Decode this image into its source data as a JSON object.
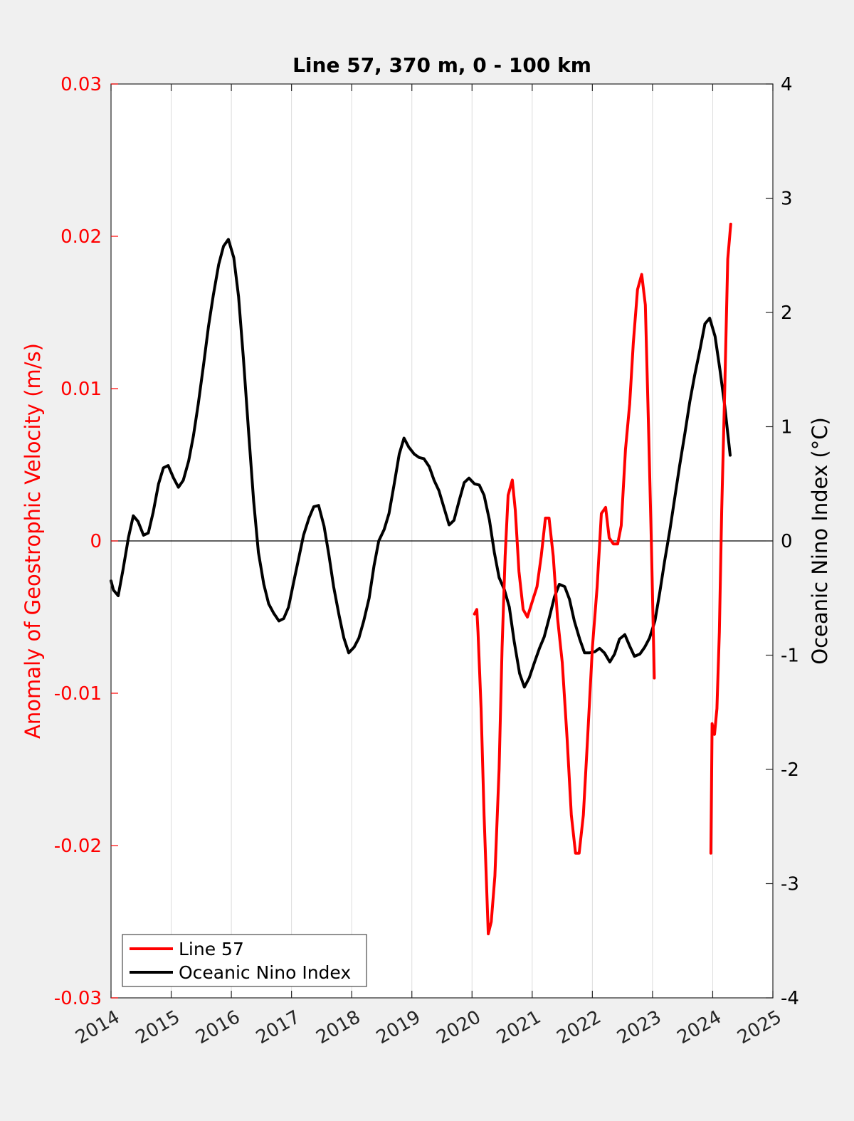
{
  "chart_data": {
    "type": "line",
    "title": "Line 57, 370 m, 0 - 100 km",
    "xlabel": "",
    "ylabel_left": "Anomaly of Geostrophic Velocity (m/s)",
    "ylabel_right": "Oceanic Nino Index (°C)",
    "xlim": [
      2014,
      2025
    ],
    "ylim_left": [
      -0.03,
      0.03
    ],
    "ylim_right": [
      -4,
      4
    ],
    "x_ticks": [
      "2014",
      "2015",
      "2016",
      "2017",
      "2018",
      "2019",
      "2020",
      "2021",
      "2022",
      "2023",
      "2024",
      "2025"
    ],
    "y_left_ticks": [
      "-0.03",
      "-0.02",
      "-0.01",
      "0",
      "0.01",
      "0.02",
      "0.03"
    ],
    "y_right_ticks": [
      "-4",
      "-3",
      "-2",
      "-1",
      "0",
      "1",
      "2",
      "3",
      "4"
    ],
    "grid": "vertical",
    "zero_line": true,
    "legend_position": "bottom-left",
    "colors": {
      "line57": "#ff0000",
      "oni": "#000000",
      "left_axis": "#ff0000",
      "right_axis": "#000000",
      "background": "#f0f0f0",
      "plot_bg": "#ffffff"
    },
    "series": [
      {
        "name": "Line 57",
        "axis": "left",
        "color": "#ff0000",
        "segments": [
          [
            [
              2020.04,
              -0.0048
            ],
            [
              2020.08,
              -0.0045
            ],
            [
              2020.1,
              -0.006
            ],
            [
              2020.15,
              -0.011
            ],
            [
              2020.2,
              -0.018
            ],
            [
              2020.27,
              -0.0258
            ],
            [
              2020.32,
              -0.025
            ],
            [
              2020.38,
              -0.022
            ],
            [
              2020.45,
              -0.015
            ],
            [
              2020.5,
              -0.007
            ],
            [
              2020.55,
              -0.001
            ],
            [
              2020.6,
              0.003
            ],
            [
              2020.67,
              0.004
            ],
            [
              2020.72,
              0.002
            ],
            [
              2020.78,
              -0.002
            ],
            [
              2020.85,
              -0.0045
            ],
            [
              2020.92,
              -0.005
            ],
            [
              2021.0,
              -0.004
            ],
            [
              2021.08,
              -0.003
            ],
            [
              2021.15,
              -0.001
            ],
            [
              2021.22,
              0.0015
            ],
            [
              2021.28,
              0.0015
            ],
            [
              2021.35,
              -0.001
            ],
            [
              2021.42,
              -0.005
            ],
            [
              2021.5,
              -0.008
            ],
            [
              2021.58,
              -0.013
            ],
            [
              2021.65,
              -0.018
            ],
            [
              2021.72,
              -0.0205
            ],
            [
              2021.78,
              -0.0205
            ],
            [
              2021.85,
              -0.018
            ],
            [
              2021.92,
              -0.013
            ],
            [
              2022.0,
              -0.007
            ],
            [
              2022.08,
              -0.003
            ],
            [
              2022.15,
              0.0018
            ],
            [
              2022.22,
              0.0022
            ],
            [
              2022.28,
              0.0002
            ],
            [
              2022.35,
              -0.0002
            ],
            [
              2022.42,
              -0.0002
            ],
            [
              2022.48,
              0.001
            ],
            [
              2022.55,
              0.006
            ],
            [
              2022.62,
              0.009
            ],
            [
              2022.68,
              0.013
            ],
            [
              2022.75,
              0.0165
            ],
            [
              2022.82,
              0.0175
            ],
            [
              2022.88,
              0.0155
            ],
            [
              2022.93,
              0.008
            ],
            [
              2022.98,
              0.0
            ],
            [
              2023.03,
              -0.009
            ]
          ],
          [
            [
              2023.97,
              -0.0205
            ],
            [
              2023.99,
              -0.012
            ],
            [
              2024.03,
              -0.0127
            ],
            [
              2024.07,
              -0.011
            ],
            [
              2024.11,
              -0.006
            ],
            [
              2024.15,
              0.002
            ],
            [
              2024.2,
              0.01
            ],
            [
              2024.25,
              0.0185
            ],
            [
              2024.3,
              0.0208
            ]
          ]
        ]
      },
      {
        "name": "Oceanic Nino Index",
        "axis": "right",
        "color": "#000000",
        "segments": [
          [
            [
              2014.0,
              -0.35
            ],
            [
              2014.04,
              -0.43
            ],
            [
              2014.12,
              -0.48
            ],
            [
              2014.2,
              -0.25
            ],
            [
              2014.29,
              0.03
            ],
            [
              2014.37,
              0.22
            ],
            [
              2014.45,
              0.17
            ],
            [
              2014.54,
              0.05
            ],
            [
              2014.62,
              0.07
            ],
            [
              2014.7,
              0.25
            ],
            [
              2014.79,
              0.5
            ],
            [
              2014.87,
              0.64
            ],
            [
              2014.95,
              0.66
            ],
            [
              2015.04,
              0.55
            ],
            [
              2015.12,
              0.47
            ],
            [
              2015.2,
              0.53
            ],
            [
              2015.29,
              0.7
            ],
            [
              2015.37,
              0.92
            ],
            [
              2015.45,
              1.2
            ],
            [
              2015.54,
              1.55
            ],
            [
              2015.62,
              1.88
            ],
            [
              2015.7,
              2.15
            ],
            [
              2015.79,
              2.42
            ],
            [
              2015.87,
              2.58
            ],
            [
              2015.95,
              2.64
            ],
            [
              2016.04,
              2.48
            ],
            [
              2016.12,
              2.14
            ],
            [
              2016.2,
              1.6
            ],
            [
              2016.29,
              0.93
            ],
            [
              2016.37,
              0.35
            ],
            [
              2016.45,
              -0.1
            ],
            [
              2016.54,
              -0.38
            ],
            [
              2016.62,
              -0.55
            ],
            [
              2016.7,
              -0.63
            ],
            [
              2016.79,
              -0.7
            ],
            [
              2016.87,
              -0.68
            ],
            [
              2016.95,
              -0.58
            ],
            [
              2017.04,
              -0.35
            ],
            [
              2017.12,
              -0.15
            ],
            [
              2017.2,
              0.05
            ],
            [
              2017.29,
              0.2
            ],
            [
              2017.37,
              0.3
            ],
            [
              2017.45,
              0.31
            ],
            [
              2017.54,
              0.13
            ],
            [
              2017.62,
              -0.12
            ],
            [
              2017.7,
              -0.4
            ],
            [
              2017.79,
              -0.65
            ],
            [
              2017.87,
              -0.85
            ],
            [
              2017.95,
              -0.98
            ],
            [
              2018.04,
              -0.93
            ],
            [
              2018.12,
              -0.85
            ],
            [
              2018.2,
              -0.7
            ],
            [
              2018.29,
              -0.5
            ],
            [
              2018.37,
              -0.22
            ],
            [
              2018.45,
              0.0
            ],
            [
              2018.54,
              0.1
            ],
            [
              2018.62,
              0.24
            ],
            [
              2018.7,
              0.48
            ],
            [
              2018.79,
              0.76
            ],
            [
              2018.87,
              0.9
            ],
            [
              2018.95,
              0.82
            ],
            [
              2019.04,
              0.76
            ],
            [
              2019.12,
              0.73
            ],
            [
              2019.2,
              0.72
            ],
            [
              2019.29,
              0.65
            ],
            [
              2019.37,
              0.53
            ],
            [
              2019.45,
              0.44
            ],
            [
              2019.54,
              0.28
            ],
            [
              2019.62,
              0.14
            ],
            [
              2019.7,
              0.18
            ],
            [
              2019.79,
              0.36
            ],
            [
              2019.87,
              0.51
            ],
            [
              2019.95,
              0.55
            ],
            [
              2020.04,
              0.5
            ],
            [
              2020.12,
              0.49
            ],
            [
              2020.2,
              0.4
            ],
            [
              2020.29,
              0.18
            ],
            [
              2020.37,
              -0.1
            ],
            [
              2020.45,
              -0.32
            ],
            [
              2020.54,
              -0.43
            ],
            [
              2020.62,
              -0.58
            ],
            [
              2020.7,
              -0.88
            ],
            [
              2020.79,
              -1.16
            ],
            [
              2020.87,
              -1.28
            ],
            [
              2020.95,
              -1.2
            ],
            [
              2021.04,
              -1.06
            ],
            [
              2021.12,
              -0.94
            ],
            [
              2021.2,
              -0.84
            ],
            [
              2021.29,
              -0.66
            ],
            [
              2021.37,
              -0.49
            ],
            [
              2021.45,
              -0.38
            ],
            [
              2021.54,
              -0.4
            ],
            [
              2021.62,
              -0.51
            ],
            [
              2021.7,
              -0.7
            ],
            [
              2021.79,
              -0.86
            ],
            [
              2021.87,
              -0.98
            ],
            [
              2021.95,
              -0.98
            ],
            [
              2022.04,
              -0.97
            ],
            [
              2022.12,
              -0.94
            ],
            [
              2022.2,
              -0.98
            ],
            [
              2022.29,
              -1.06
            ],
            [
              2022.37,
              -0.99
            ],
            [
              2022.45,
              -0.86
            ],
            [
              2022.54,
              -0.82
            ],
            [
              2022.62,
              -0.92
            ],
            [
              2022.7,
              -1.01
            ],
            [
              2022.79,
              -0.99
            ],
            [
              2022.87,
              -0.93
            ],
            [
              2022.95,
              -0.85
            ],
            [
              2023.04,
              -0.7
            ],
            [
              2023.12,
              -0.45
            ],
            [
              2023.2,
              -0.18
            ],
            [
              2023.29,
              0.1
            ],
            [
              2023.37,
              0.38
            ],
            [
              2023.45,
              0.66
            ],
            [
              2023.54,
              0.95
            ],
            [
              2023.62,
              1.22
            ],
            [
              2023.7,
              1.45
            ],
            [
              2023.79,
              1.68
            ],
            [
              2023.87,
              1.9
            ],
            [
              2023.95,
              1.95
            ],
            [
              2024.04,
              1.79
            ],
            [
              2024.12,
              1.5
            ],
            [
              2024.2,
              1.18
            ],
            [
              2024.29,
              0.75
            ]
          ]
        ]
      }
    ]
  }
}
